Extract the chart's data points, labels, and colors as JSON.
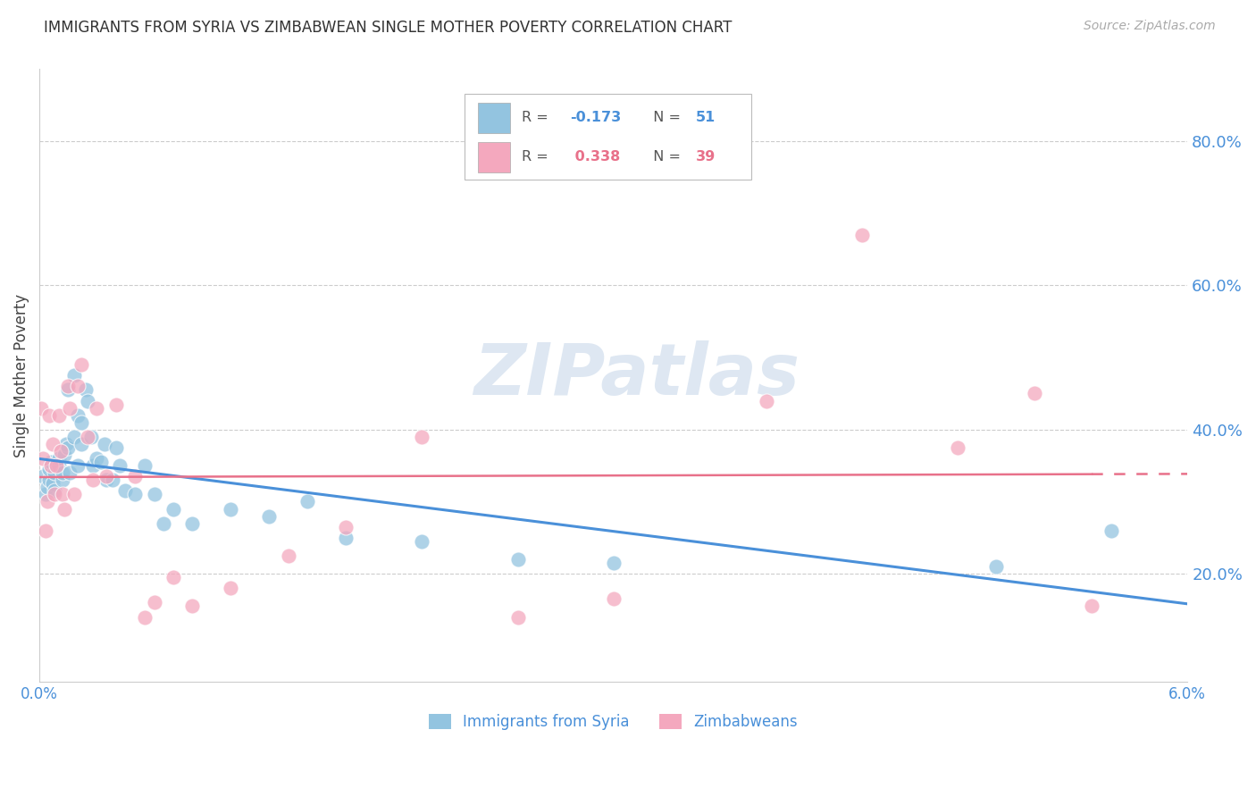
{
  "title": "IMMIGRANTS FROM SYRIA VS ZIMBABWEAN SINGLE MOTHER POVERTY CORRELATION CHART",
  "source": "Source: ZipAtlas.com",
  "ylabel": "Single Mother Poverty",
  "ytick_labels": [
    "20.0%",
    "40.0%",
    "60.0%",
    "80.0%"
  ],
  "ytick_values": [
    0.2,
    0.4,
    0.6,
    0.8
  ],
  "xlim": [
    0.0,
    0.06
  ],
  "ylim": [
    0.05,
    0.9
  ],
  "legend1_label": "Immigrants from Syria",
  "legend2_label": "Zimbabweans",
  "R1": -0.173,
  "N1": 51,
  "R2": 0.338,
  "N2": 39,
  "color_blue": "#93c4e0",
  "color_pink": "#f4a8be",
  "color_blue_dark": "#4a90d9",
  "color_pink_dark": "#e8718a",
  "watermark": "ZIPatlas",
  "watermark_color": "#c8d8ea",
  "syria_x": [
    0.0002,
    0.0003,
    0.0004,
    0.0005,
    0.0005,
    0.0006,
    0.0007,
    0.0008,
    0.0008,
    0.001,
    0.001,
    0.0012,
    0.0012,
    0.0013,
    0.0014,
    0.0015,
    0.0015,
    0.0016,
    0.0018,
    0.0018,
    0.002,
    0.002,
    0.0022,
    0.0022,
    0.0024,
    0.0025,
    0.0027,
    0.0028,
    0.003,
    0.0032,
    0.0034,
    0.0035,
    0.0038,
    0.004,
    0.0042,
    0.0045,
    0.005,
    0.0055,
    0.006,
    0.0065,
    0.007,
    0.008,
    0.01,
    0.012,
    0.014,
    0.016,
    0.02,
    0.025,
    0.03,
    0.05,
    0.056
  ],
  "syria_y": [
    0.335,
    0.31,
    0.32,
    0.33,
    0.345,
    0.355,
    0.325,
    0.315,
    0.34,
    0.36,
    0.35,
    0.33,
    0.34,
    0.365,
    0.38,
    0.455,
    0.375,
    0.34,
    0.475,
    0.39,
    0.42,
    0.35,
    0.38,
    0.41,
    0.455,
    0.44,
    0.39,
    0.35,
    0.36,
    0.355,
    0.38,
    0.33,
    0.33,
    0.375,
    0.35,
    0.315,
    0.31,
    0.35,
    0.31,
    0.27,
    0.29,
    0.27,
    0.29,
    0.28,
    0.3,
    0.25,
    0.245,
    0.22,
    0.215,
    0.21,
    0.26
  ],
  "zimb_x": [
    0.0001,
    0.0002,
    0.0003,
    0.0004,
    0.0005,
    0.0006,
    0.0007,
    0.0008,
    0.0009,
    0.001,
    0.0011,
    0.0012,
    0.0013,
    0.0015,
    0.0016,
    0.0018,
    0.002,
    0.0022,
    0.0025,
    0.0028,
    0.003,
    0.0035,
    0.004,
    0.005,
    0.0055,
    0.006,
    0.007,
    0.008,
    0.01,
    0.013,
    0.016,
    0.02,
    0.025,
    0.03,
    0.038,
    0.043,
    0.048,
    0.052,
    0.055
  ],
  "zimb_y": [
    0.43,
    0.36,
    0.26,
    0.3,
    0.42,
    0.35,
    0.38,
    0.31,
    0.35,
    0.42,
    0.37,
    0.31,
    0.29,
    0.46,
    0.43,
    0.31,
    0.46,
    0.49,
    0.39,
    0.33,
    0.43,
    0.335,
    0.435,
    0.335,
    0.14,
    0.16,
    0.195,
    0.155,
    0.18,
    0.225,
    0.265,
    0.39,
    0.14,
    0.165,
    0.44,
    0.67,
    0.375,
    0.45,
    0.155
  ]
}
